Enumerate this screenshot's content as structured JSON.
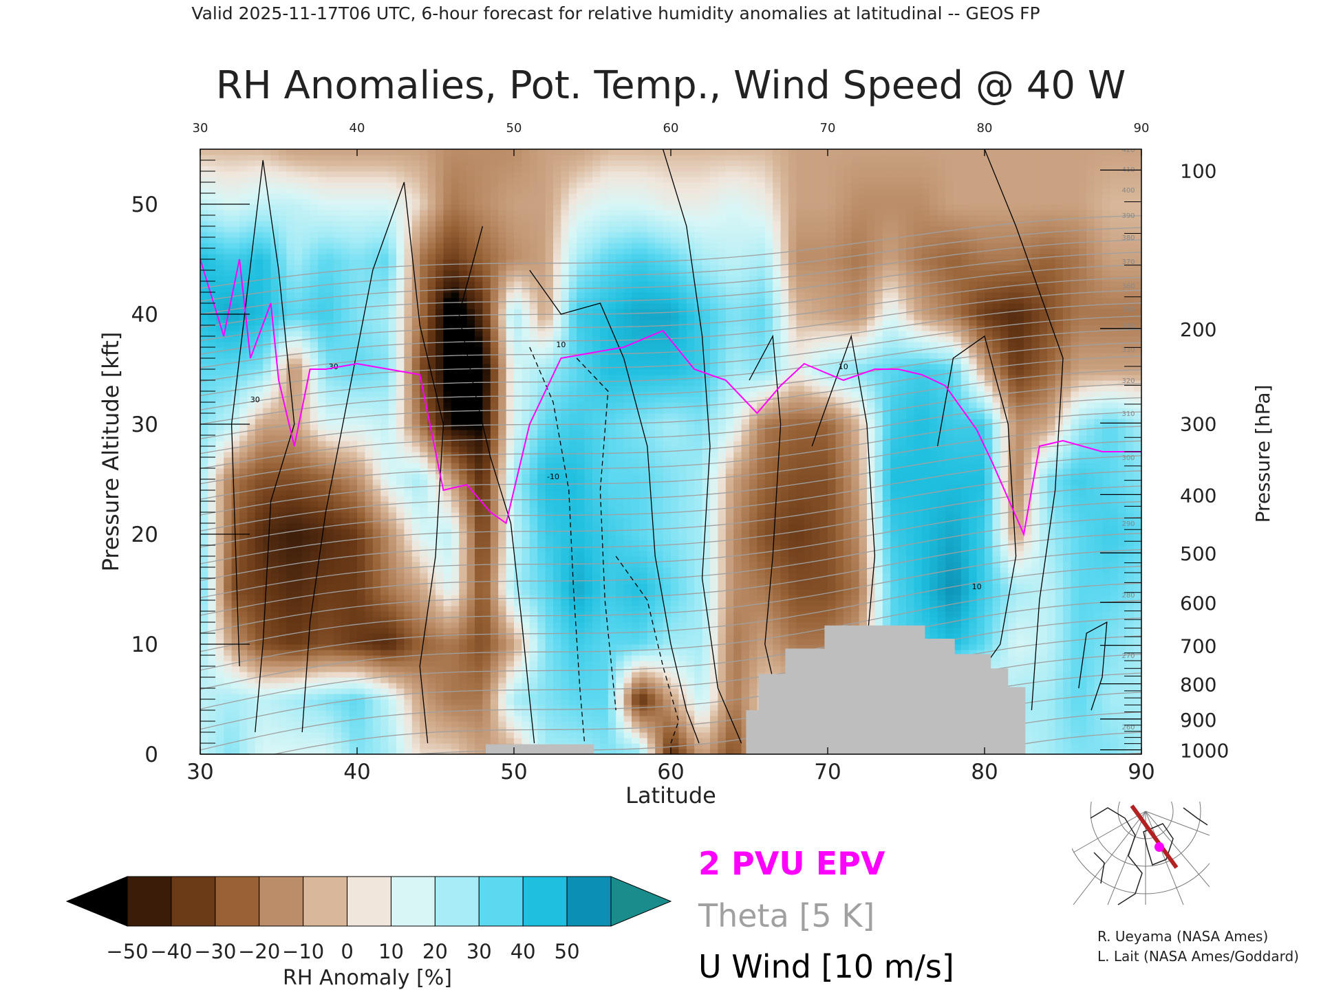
{
  "header": {
    "valid_line": "Valid 2025-11-17T06 UTC, 6-hour forecast for relative humidity anomalies at latitudinal -- GEOS FP",
    "title": "RH Anomalies, Pot. Temp., Wind Speed @ 40 W"
  },
  "colors": {
    "epv": "#ff00ff",
    "theta": "#a0a0a0",
    "wind": "#000000",
    "terrain": "#bebebe",
    "accent_dry": "#000000",
    "accent_wet": "#1a8c8c"
  },
  "chart_data": {
    "type": "heatmap",
    "title": "RH Anomalies, Pot. Temp., Wind Speed @ 40 W",
    "xlabel": "Latitude",
    "ylabel": "Pressure Altitude [kft]",
    "y2label": "Pressure [hPa]",
    "xlim": [
      30,
      90
    ],
    "ylim": [
      0,
      55
    ],
    "x_ticks": [
      "30",
      "40",
      "50",
      "60",
      "70",
      "80",
      "90"
    ],
    "top_ticks": [
      "30",
      "40",
      "50",
      "60",
      "70",
      "80",
      "90"
    ],
    "y_ticks": [
      "0",
      "10",
      "20",
      "30",
      "40",
      "50"
    ],
    "pressure_ticks": [
      {
        "label": "100",
        "kft": 53.1
      },
      {
        "label": "200",
        "kft": 38.7
      },
      {
        "label": "300",
        "kft": 30.1
      },
      {
        "label": "400",
        "kft": 23.6
      },
      {
        "label": "500",
        "kft": 18.3
      },
      {
        "label": "600",
        "kft": 13.8
      },
      {
        "label": "700",
        "kft": 9.9
      },
      {
        "label": "800",
        "kft": 6.4
      },
      {
        "label": "900",
        "kft": 3.2
      },
      {
        "label": "1000",
        "kft": 0.4
      }
    ],
    "rh_anomaly_field": {
      "lat": [
        30,
        32,
        34,
        36,
        38,
        40,
        42,
        44,
        46,
        48,
        50,
        52,
        54,
        56,
        58,
        60,
        62,
        64,
        66,
        68,
        70,
        72,
        74,
        76,
        78,
        80,
        82,
        84,
        86,
        88,
        90
      ],
      "levels_kft": [
        0,
        5,
        10,
        15,
        20,
        25,
        30,
        35,
        40,
        45,
        50,
        55
      ],
      "values": [
        [
          15,
          25,
          10,
          10,
          10,
          25,
          20,
          0,
          0,
          -10,
          -10,
          20,
          20,
          25,
          25,
          -40,
          -10,
          -30,
          0,
          0,
          0,
          0,
          0,
          0,
          0,
          0,
          15,
          20,
          25,
          25,
          20
        ],
        [
          15,
          20,
          15,
          20,
          25,
          30,
          15,
          -10,
          -20,
          -20,
          20,
          25,
          30,
          30,
          -40,
          -10,
          15,
          -20,
          0,
          0,
          0,
          0,
          0,
          0,
          0,
          0,
          20,
          20,
          30,
          20,
          20
        ],
        [
          20,
          -10,
          -30,
          -35,
          -30,
          -35,
          -40,
          -25,
          -20,
          -30,
          -10,
          25,
          35,
          30,
          30,
          20,
          20,
          -20,
          -10,
          -20,
          -20,
          -10,
          30,
          35,
          40,
          30,
          10,
          15,
          30,
          25,
          20
        ],
        [
          30,
          -30,
          -35,
          -40,
          -35,
          -35,
          -20,
          -10,
          10,
          -30,
          20,
          30,
          45,
          35,
          40,
          30,
          20,
          -15,
          -20,
          -30,
          -30,
          -20,
          30,
          40,
          50,
          35,
          20,
          15,
          30,
          30,
          25
        ],
        [
          25,
          -25,
          -40,
          -45,
          -40,
          -35,
          -15,
          10,
          15,
          -35,
          15,
          35,
          40,
          35,
          30,
          25,
          20,
          -15,
          -30,
          -35,
          -30,
          -15,
          35,
          40,
          45,
          35,
          -10,
          20,
          30,
          35,
          30
        ],
        [
          20,
          -20,
          -30,
          -30,
          -25,
          -15,
          10,
          20,
          -10,
          -40,
          20,
          40,
          40,
          30,
          30,
          25,
          20,
          -10,
          -25,
          -30,
          -30,
          -10,
          40,
          40,
          40,
          40,
          -20,
          25,
          35,
          30,
          25
        ],
        [
          25,
          15,
          -10,
          -10,
          10,
          10,
          15,
          -20,
          -50,
          -50,
          10,
          30,
          35,
          30,
          25,
          20,
          25,
          10,
          -20,
          -25,
          -25,
          -5,
          35,
          40,
          35,
          35,
          -15,
          -10,
          20,
          30,
          20
        ],
        [
          30,
          30,
          25,
          -15,
          25,
          30,
          25,
          -30,
          -55,
          -55,
          10,
          20,
          30,
          40,
          40,
          40,
          35,
          20,
          25,
          5,
          20,
          25,
          30,
          35,
          30,
          -10,
          -35,
          -25,
          -10,
          -10,
          -10
        ],
        [
          40,
          45,
          40,
          30,
          35,
          25,
          20,
          -20,
          -60,
          -40,
          20,
          -10,
          35,
          40,
          45,
          45,
          35,
          25,
          30,
          -5,
          -10,
          -15,
          10,
          -10,
          -20,
          -35,
          -40,
          -30,
          -20,
          -20,
          -20
        ],
        [
          40,
          35,
          40,
          20,
          30,
          25,
          30,
          -20,
          -35,
          -25,
          -15,
          -10,
          20,
          30,
          35,
          30,
          20,
          15,
          20,
          -15,
          -15,
          -20,
          -10,
          -20,
          -25,
          -20,
          -20,
          -25,
          -20,
          -10,
          -10
        ],
        [
          15,
          10,
          15,
          15,
          10,
          10,
          10,
          0,
          -20,
          -15,
          -10,
          -10,
          5,
          10,
          10,
          5,
          5,
          10,
          5,
          -10,
          -10,
          -15,
          -15,
          -15,
          -10,
          -10,
          -10,
          -10,
          -10,
          -5,
          -5
        ],
        [
          -5,
          -5,
          -5,
          -10,
          -10,
          -10,
          -10,
          -10,
          -15,
          -15,
          -15,
          -10,
          -10,
          -5,
          -5,
          -5,
          -5,
          -5,
          -5,
          -10,
          -10,
          -10,
          -10,
          -10,
          -10,
          -10,
          -10,
          -10,
          -10,
          -10,
          -10
        ]
      ]
    },
    "terrain_kft": [
      {
        "lat": 48.2,
        "kft": 0.9
      },
      {
        "lat": 55.1,
        "kft": 0.9
      },
      {
        "lat": 64.8,
        "kft": 4.0
      },
      {
        "lat": 65.6,
        "kft": 7.3
      },
      {
        "lat": 67.3,
        "kft": 9.6
      },
      {
        "lat": 69.8,
        "kft": 11.7
      },
      {
        "lat": 74.7,
        "kft": 11.7
      },
      {
        "lat": 76.2,
        "kft": 10.5
      },
      {
        "lat": 78.1,
        "kft": 9.1
      },
      {
        "lat": 80.4,
        "kft": 7.8
      },
      {
        "lat": 81.5,
        "kft": 6.1
      },
      {
        "lat": 82.6,
        "kft": 3.2
      }
    ],
    "epv_2pvu": [
      {
        "lat": 30,
        "kft": 45
      },
      {
        "lat": 31.5,
        "kft": 38
      },
      {
        "lat": 32.5,
        "kft": 45
      },
      {
        "lat": 33.2,
        "kft": 36
      },
      {
        "lat": 34.5,
        "kft": 41
      },
      {
        "lat": 35,
        "kft": 34
      },
      {
        "lat": 36,
        "kft": 28
      },
      {
        "lat": 37,
        "kft": 35
      },
      {
        "lat": 38,
        "kft": 35
      },
      {
        "lat": 40,
        "kft": 35.5
      },
      {
        "lat": 42,
        "kft": 35
      },
      {
        "lat": 44,
        "kft": 34.5
      },
      {
        "lat": 45.5,
        "kft": 24
      },
      {
        "lat": 47,
        "kft": 24.5
      },
      {
        "lat": 48.5,
        "kft": 22
      },
      {
        "lat": 49.5,
        "kft": 21
      },
      {
        "lat": 51,
        "kft": 30
      },
      {
        "lat": 53,
        "kft": 36
      },
      {
        "lat": 55,
        "kft": 36.5
      },
      {
        "lat": 57,
        "kft": 37
      },
      {
        "lat": 59.5,
        "kft": 38.5
      },
      {
        "lat": 61.5,
        "kft": 35
      },
      {
        "lat": 63.5,
        "kft": 34
      },
      {
        "lat": 65.5,
        "kft": 31
      },
      {
        "lat": 67,
        "kft": 33.5
      },
      {
        "lat": 68.5,
        "kft": 35.5
      },
      {
        "lat": 71,
        "kft": 34
      },
      {
        "lat": 73,
        "kft": 35
      },
      {
        "lat": 74.5,
        "kft": 35
      },
      {
        "lat": 76,
        "kft": 34.5
      },
      {
        "lat": 77.5,
        "kft": 33.5
      },
      {
        "lat": 79.5,
        "kft": 29.5
      },
      {
        "lat": 80.5,
        "kft": 26.5
      },
      {
        "lat": 82.5,
        "kft": 20
      },
      {
        "lat": 83.5,
        "kft": 28
      },
      {
        "lat": 85,
        "kft": 28.5
      },
      {
        "lat": 87.5,
        "kft": 27.5
      },
      {
        "lat": 90,
        "kft": 27.5
      }
    ],
    "theta_levels": [
      "260",
      "270",
      "280",
      "290",
      "300",
      "310",
      "320",
      "330",
      "340",
      "350",
      "360",
      "370",
      "380",
      "390",
      "400",
      "410",
      "420"
    ],
    "wind_contour_labels": [
      "10",
      "30",
      "-10"
    ],
    "colorbar": {
      "label": "RH Anomaly [%]",
      "ticks": [
        "−50",
        "−40",
        "−30",
        "−20",
        "−10",
        "0",
        "10",
        "20",
        "30",
        "40",
        "50"
      ],
      "bins": [
        {
          "from": -50,
          "to": -40,
          "color": "#3a1c09"
        },
        {
          "from": -40,
          "to": -30,
          "color": "#6b3a17"
        },
        {
          "from": -30,
          "to": -20,
          "color": "#986236"
        },
        {
          "from": -20,
          "to": -10,
          "color": "#bb8d68"
        },
        {
          "from": -10,
          "to": 0,
          "color": "#d8b79a"
        },
        {
          "from": 0,
          "to": 10,
          "color": "#f0e6dc"
        },
        {
          "from": 10,
          "to": 20,
          "color": "#d9f6f6"
        },
        {
          "from": 20,
          "to": 30,
          "color": "#a7ecf6"
        },
        {
          "from": 30,
          "to": 40,
          "color": "#5cd8f0"
        },
        {
          "from": 40,
          "to": 50,
          "color": "#1fbfdf"
        },
        {
          "from": 50,
          "to": 60,
          "color": "#0b8fb2"
        }
      ],
      "under_color": "#000000",
      "over_color": "#1a8c8c"
    },
    "legend": [
      {
        "label": "2 PVU EPV",
        "color": "#ff00ff"
      },
      {
        "label": "Theta [5 K]",
        "color": "#a0a0a0"
      },
      {
        "label": "U Wind [10 m/s]",
        "color": "#000000"
      }
    ]
  },
  "credits": {
    "line1": "R. Ueyama (NASA Ames)",
    "line2": "L. Lait (NASA Ames/Goddard)"
  },
  "inset_map": {
    "icon": "polar-map-icon",
    "track_color": "#b22222",
    "marker_color": "#ff00ff"
  }
}
